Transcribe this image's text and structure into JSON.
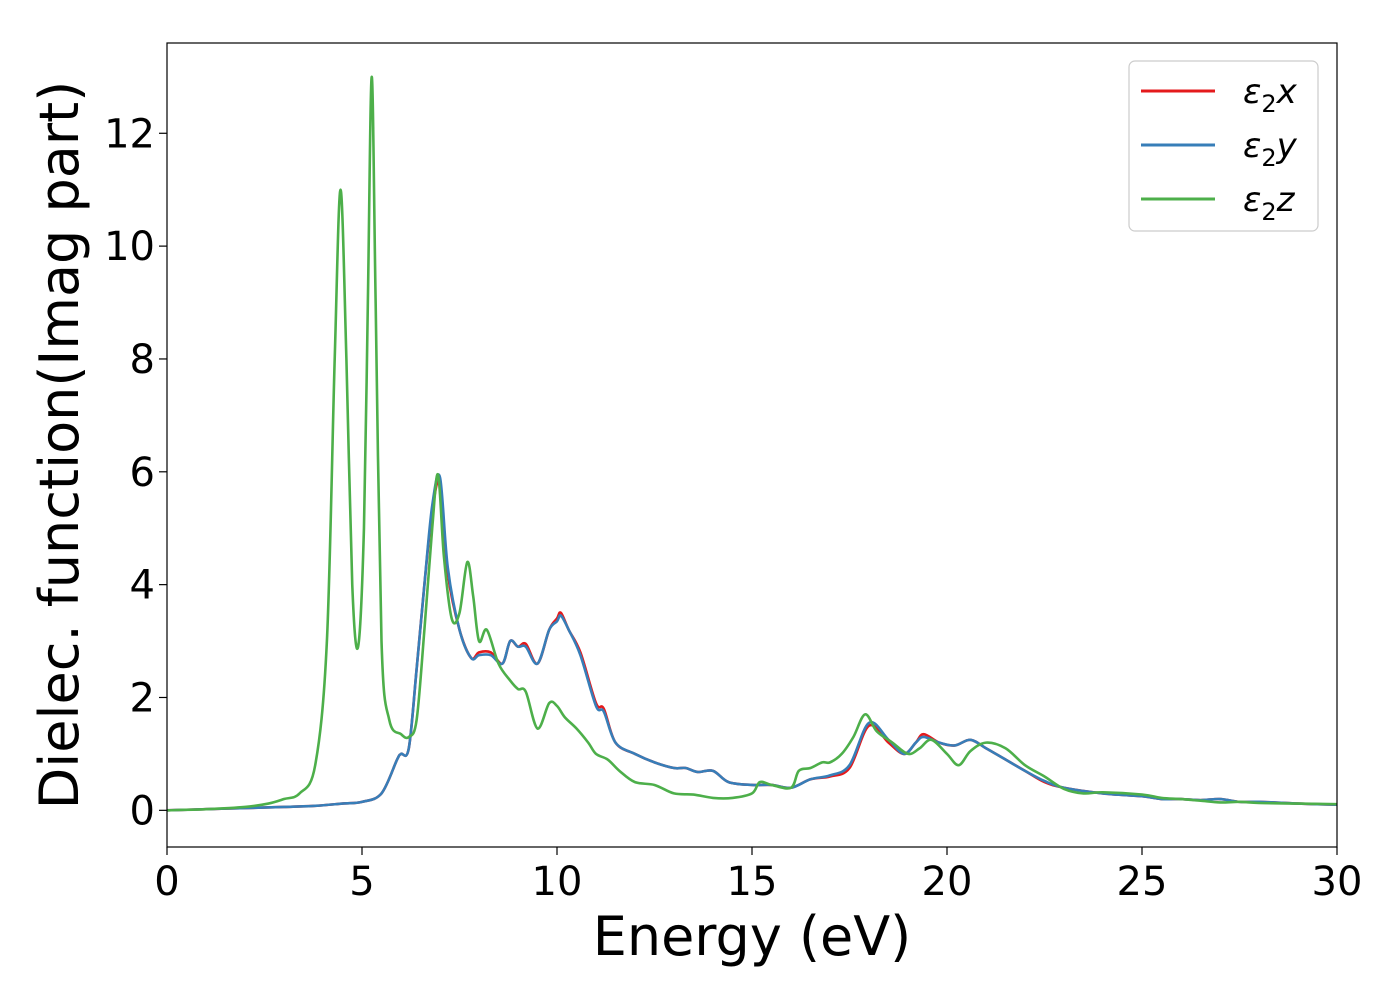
{
  "chart_data": {
    "type": "line",
    "title": "",
    "xlabel": "Energy (eV)",
    "ylabel": "Dielec. function(Imag part)",
    "xlim": [
      0,
      30
    ],
    "ylim": [
      -0.65,
      13.6
    ],
    "xticks": [
      0,
      5,
      10,
      15,
      20,
      25,
      30
    ],
    "xtick_labels": [
      "0",
      "5",
      "10",
      "15",
      "20",
      "25",
      "30"
    ],
    "yticks": [
      0,
      2,
      4,
      6,
      8,
      10,
      12
    ],
    "ytick_labels": [
      "0",
      "2",
      "4",
      "6",
      "8",
      "10",
      "12"
    ],
    "grid": false,
    "legend_position": "top-right",
    "series": [
      {
        "name": "ε2x",
        "legend_base": "ε",
        "legend_sub": "2",
        "legend_suffix": "x",
        "color": "#e41a1c",
        "x": [
          0,
          1,
          2,
          3,
          3.8,
          4.5,
          5.0,
          5.5,
          5.9,
          6.0,
          6.2,
          6.4,
          6.6,
          6.8,
          7.0,
          7.2,
          7.5,
          7.8,
          8.0,
          8.3,
          8.6,
          8.8,
          9.0,
          9.2,
          9.5,
          9.8,
          10.0,
          10.1,
          10.3,
          10.6,
          11.0,
          11.2,
          11.5,
          12.0,
          12.5,
          13.0,
          13.3,
          13.6,
          14.0,
          14.4,
          15.0,
          15.5,
          16.0,
          16.5,
          17.0,
          17.5,
          18.0,
          18.5,
          18.9,
          19.2,
          19.4,
          19.8,
          20.2,
          20.6,
          21.0,
          21.5,
          22.0,
          22.5,
          23.0,
          24.0,
          25.0,
          25.5,
          26.0,
          26.5,
          27.0,
          27.5,
          28.0,
          29.0,
          30.0
        ],
        "y": [
          0.0,
          0.02,
          0.04,
          0.06,
          0.08,
          0.12,
          0.15,
          0.3,
          0.9,
          1.0,
          1.1,
          2.5,
          4.0,
          5.3,
          5.8,
          4.2,
          3.2,
          2.7,
          2.8,
          2.8,
          2.6,
          3.0,
          2.9,
          2.95,
          2.6,
          3.2,
          3.4,
          3.5,
          3.2,
          2.8,
          1.9,
          1.8,
          1.2,
          1.0,
          0.85,
          0.75,
          0.75,
          0.68,
          0.7,
          0.5,
          0.45,
          0.45,
          0.4,
          0.55,
          0.6,
          0.75,
          1.5,
          1.2,
          1.0,
          1.2,
          1.35,
          1.2,
          1.15,
          1.25,
          1.1,
          0.9,
          0.7,
          0.5,
          0.4,
          0.3,
          0.25,
          0.2,
          0.2,
          0.18,
          0.2,
          0.15,
          0.15,
          0.12,
          0.1
        ]
      },
      {
        "name": "ε2y",
        "legend_base": "ε",
        "legend_sub": "2",
        "legend_suffix": "y",
        "color": "#377eb8",
        "x": [
          0,
          1,
          2,
          3,
          3.8,
          4.5,
          5.0,
          5.5,
          5.9,
          6.0,
          6.2,
          6.4,
          6.6,
          6.8,
          7.0,
          7.2,
          7.5,
          7.8,
          8.0,
          8.3,
          8.6,
          8.8,
          9.0,
          9.2,
          9.5,
          9.8,
          10.0,
          10.1,
          10.3,
          10.6,
          11.0,
          11.2,
          11.5,
          12.0,
          12.5,
          13.0,
          13.3,
          13.6,
          14.0,
          14.4,
          15.0,
          15.5,
          16.0,
          16.5,
          17.0,
          17.5,
          18.0,
          18.5,
          18.9,
          19.2,
          19.4,
          19.8,
          20.2,
          20.6,
          21.0,
          21.5,
          22.0,
          22.5,
          23.0,
          24.0,
          25.0,
          25.5,
          26.0,
          26.5,
          27.0,
          27.5,
          28.0,
          29.0,
          30.0
        ],
        "y": [
          0.0,
          0.02,
          0.04,
          0.06,
          0.08,
          0.12,
          0.15,
          0.3,
          0.9,
          1.0,
          1.1,
          2.5,
          4.0,
          5.4,
          5.9,
          4.3,
          3.2,
          2.7,
          2.75,
          2.75,
          2.6,
          3.0,
          2.9,
          2.9,
          2.6,
          3.2,
          3.35,
          3.45,
          3.2,
          2.75,
          1.85,
          1.75,
          1.2,
          1.0,
          0.85,
          0.75,
          0.75,
          0.68,
          0.7,
          0.5,
          0.45,
          0.45,
          0.4,
          0.55,
          0.62,
          0.8,
          1.55,
          1.25,
          1.0,
          1.2,
          1.3,
          1.2,
          1.15,
          1.25,
          1.1,
          0.9,
          0.7,
          0.52,
          0.4,
          0.3,
          0.25,
          0.2,
          0.2,
          0.18,
          0.2,
          0.15,
          0.15,
          0.12,
          0.1
        ]
      },
      {
        "name": "ε2z",
        "legend_base": "ε",
        "legend_sub": "2",
        "legend_suffix": "z",
        "color": "#4daf4a",
        "x": [
          0,
          1,
          2,
          2.6,
          3.0,
          3.4,
          3.8,
          4.1,
          4.3,
          4.45,
          4.6,
          4.75,
          4.9,
          5.05,
          5.15,
          5.25,
          5.35,
          5.5,
          5.7,
          6.0,
          6.2,
          6.4,
          6.6,
          6.8,
          6.95,
          7.1,
          7.3,
          7.5,
          7.7,
          7.85,
          8.0,
          8.2,
          8.5,
          8.8,
          9.0,
          9.2,
          9.5,
          9.8,
          10.0,
          10.2,
          10.5,
          10.8,
          11.0,
          11.3,
          11.6,
          12.0,
          12.5,
          13.0,
          13.5,
          14.0,
          14.5,
          15.0,
          15.2,
          15.5,
          16.0,
          16.2,
          16.5,
          16.8,
          17.0,
          17.3,
          17.6,
          17.9,
          18.2,
          18.6,
          19.0,
          19.3,
          19.6,
          20.0,
          20.3,
          20.6,
          21.0,
          21.5,
          22.0,
          22.5,
          23.0,
          23.5,
          24.0,
          25.0,
          25.5,
          26.0,
          26.5,
          27.0,
          27.5,
          28.0,
          29.0,
          30.0
        ],
        "y": [
          0.0,
          0.02,
          0.06,
          0.12,
          0.2,
          0.3,
          0.8,
          3.0,
          8.0,
          11.0,
          8.0,
          4.0,
          2.9,
          5.0,
          9.0,
          13.0,
          9.0,
          3.0,
          1.6,
          1.35,
          1.3,
          1.6,
          3.2,
          5.0,
          5.95,
          4.5,
          3.4,
          3.5,
          4.4,
          3.8,
          3.0,
          3.2,
          2.6,
          2.3,
          2.15,
          2.1,
          1.45,
          1.9,
          1.85,
          1.65,
          1.45,
          1.2,
          1.0,
          0.9,
          0.7,
          0.5,
          0.45,
          0.3,
          0.28,
          0.22,
          0.22,
          0.3,
          0.5,
          0.45,
          0.4,
          0.7,
          0.75,
          0.85,
          0.85,
          1.0,
          1.3,
          1.7,
          1.4,
          1.2,
          1.0,
          1.1,
          1.25,
          1.0,
          0.8,
          1.05,
          1.2,
          1.1,
          0.8,
          0.6,
          0.38,
          0.3,
          0.32,
          0.28,
          0.22,
          0.2,
          0.17,
          0.14,
          0.15,
          0.13,
          0.12,
          0.11
        ]
      }
    ]
  }
}
